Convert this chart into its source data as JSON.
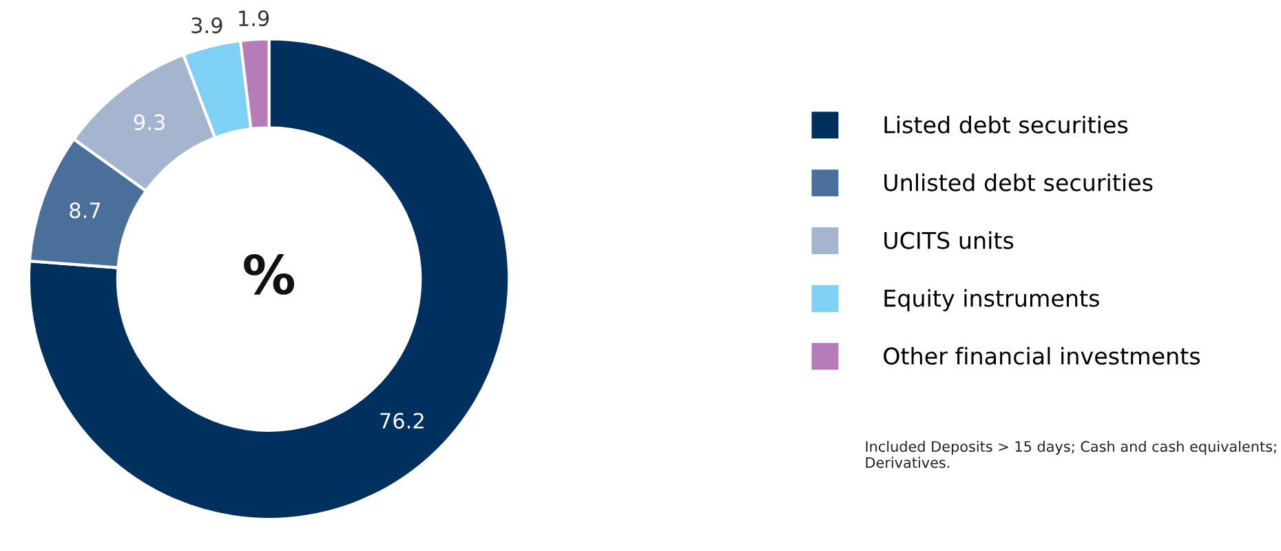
{
  "chart_data": {
    "type": "donut",
    "categories": [
      "Listed debt securities",
      "Unlisted debt securities",
      "UCITS units",
      "Equity instruments",
      "Other financial investments"
    ],
    "values": [
      76.2,
      8.7,
      9.3,
      3.9,
      1.9
    ],
    "colors": [
      "#00305e",
      "#4a6f9a",
      "#a5b5cf",
      "#7fd0f5",
      "#b67bb9"
    ],
    "data_labels": true,
    "legend": "right",
    "annotations": [
      "%",
      "Included Deposits > 15 days; Cash and cash equivalents;\nDerivatives."
    ]
  }
}
